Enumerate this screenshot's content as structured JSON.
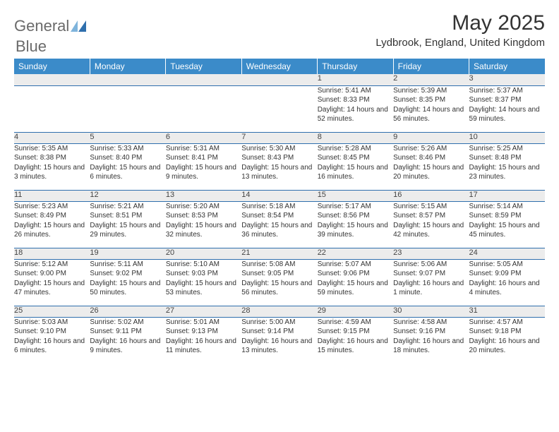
{
  "brand": {
    "general": "General",
    "blue": "Blue"
  },
  "title": "May 2025",
  "location": "Lydbrook, England, United Kingdom",
  "dayHeaders": [
    "Sunday",
    "Monday",
    "Tuesday",
    "Wednesday",
    "Thursday",
    "Friday",
    "Saturday"
  ],
  "colors": {
    "headerBg": "#3b8bc9",
    "headerText": "#ffffff",
    "dayNumBg": "#ececec",
    "ruleColor": "#2f6fad",
    "logoGray": "#6a6a6a",
    "logoBlue": "#2f6fad",
    "sailLight": "#7fb4dc",
    "sailDark": "#2f6fad"
  },
  "typography": {
    "titleSize": 30,
    "locationSize": 15,
    "headerSize": 12,
    "dayNumSize": 11,
    "cellSize": 10
  },
  "weeks": [
    [
      null,
      null,
      null,
      null,
      {
        "n": "1",
        "sr": "5:41 AM",
        "ss": "8:33 PM",
        "dl": "14 hours and 52 minutes."
      },
      {
        "n": "2",
        "sr": "5:39 AM",
        "ss": "8:35 PM",
        "dl": "14 hours and 56 minutes."
      },
      {
        "n": "3",
        "sr": "5:37 AM",
        "ss": "8:37 PM",
        "dl": "14 hours and 59 minutes."
      }
    ],
    [
      {
        "n": "4",
        "sr": "5:35 AM",
        "ss": "8:38 PM",
        "dl": "15 hours and 3 minutes."
      },
      {
        "n": "5",
        "sr": "5:33 AM",
        "ss": "8:40 PM",
        "dl": "15 hours and 6 minutes."
      },
      {
        "n": "6",
        "sr": "5:31 AM",
        "ss": "8:41 PM",
        "dl": "15 hours and 9 minutes."
      },
      {
        "n": "7",
        "sr": "5:30 AM",
        "ss": "8:43 PM",
        "dl": "15 hours and 13 minutes."
      },
      {
        "n": "8",
        "sr": "5:28 AM",
        "ss": "8:45 PM",
        "dl": "15 hours and 16 minutes."
      },
      {
        "n": "9",
        "sr": "5:26 AM",
        "ss": "8:46 PM",
        "dl": "15 hours and 20 minutes."
      },
      {
        "n": "10",
        "sr": "5:25 AM",
        "ss": "8:48 PM",
        "dl": "15 hours and 23 minutes."
      }
    ],
    [
      {
        "n": "11",
        "sr": "5:23 AM",
        "ss": "8:49 PM",
        "dl": "15 hours and 26 minutes."
      },
      {
        "n": "12",
        "sr": "5:21 AM",
        "ss": "8:51 PM",
        "dl": "15 hours and 29 minutes."
      },
      {
        "n": "13",
        "sr": "5:20 AM",
        "ss": "8:53 PM",
        "dl": "15 hours and 32 minutes."
      },
      {
        "n": "14",
        "sr": "5:18 AM",
        "ss": "8:54 PM",
        "dl": "15 hours and 36 minutes."
      },
      {
        "n": "15",
        "sr": "5:17 AM",
        "ss": "8:56 PM",
        "dl": "15 hours and 39 minutes."
      },
      {
        "n": "16",
        "sr": "5:15 AM",
        "ss": "8:57 PM",
        "dl": "15 hours and 42 minutes."
      },
      {
        "n": "17",
        "sr": "5:14 AM",
        "ss": "8:59 PM",
        "dl": "15 hours and 45 minutes."
      }
    ],
    [
      {
        "n": "18",
        "sr": "5:12 AM",
        "ss": "9:00 PM",
        "dl": "15 hours and 47 minutes."
      },
      {
        "n": "19",
        "sr": "5:11 AM",
        "ss": "9:02 PM",
        "dl": "15 hours and 50 minutes."
      },
      {
        "n": "20",
        "sr": "5:10 AM",
        "ss": "9:03 PM",
        "dl": "15 hours and 53 minutes."
      },
      {
        "n": "21",
        "sr": "5:08 AM",
        "ss": "9:05 PM",
        "dl": "15 hours and 56 minutes."
      },
      {
        "n": "22",
        "sr": "5:07 AM",
        "ss": "9:06 PM",
        "dl": "15 hours and 59 minutes."
      },
      {
        "n": "23",
        "sr": "5:06 AM",
        "ss": "9:07 PM",
        "dl": "16 hours and 1 minute."
      },
      {
        "n": "24",
        "sr": "5:05 AM",
        "ss": "9:09 PM",
        "dl": "16 hours and 4 minutes."
      }
    ],
    [
      {
        "n": "25",
        "sr": "5:03 AM",
        "ss": "9:10 PM",
        "dl": "16 hours and 6 minutes."
      },
      {
        "n": "26",
        "sr": "5:02 AM",
        "ss": "9:11 PM",
        "dl": "16 hours and 9 minutes."
      },
      {
        "n": "27",
        "sr": "5:01 AM",
        "ss": "9:13 PM",
        "dl": "16 hours and 11 minutes."
      },
      {
        "n": "28",
        "sr": "5:00 AM",
        "ss": "9:14 PM",
        "dl": "16 hours and 13 minutes."
      },
      {
        "n": "29",
        "sr": "4:59 AM",
        "ss": "9:15 PM",
        "dl": "16 hours and 15 minutes."
      },
      {
        "n": "30",
        "sr": "4:58 AM",
        "ss": "9:16 PM",
        "dl": "16 hours and 18 minutes."
      },
      {
        "n": "31",
        "sr": "4:57 AM",
        "ss": "9:18 PM",
        "dl": "16 hours and 20 minutes."
      }
    ]
  ],
  "labels": {
    "sunrise": "Sunrise: ",
    "sunset": "Sunset: ",
    "daylight": "Daylight: "
  }
}
